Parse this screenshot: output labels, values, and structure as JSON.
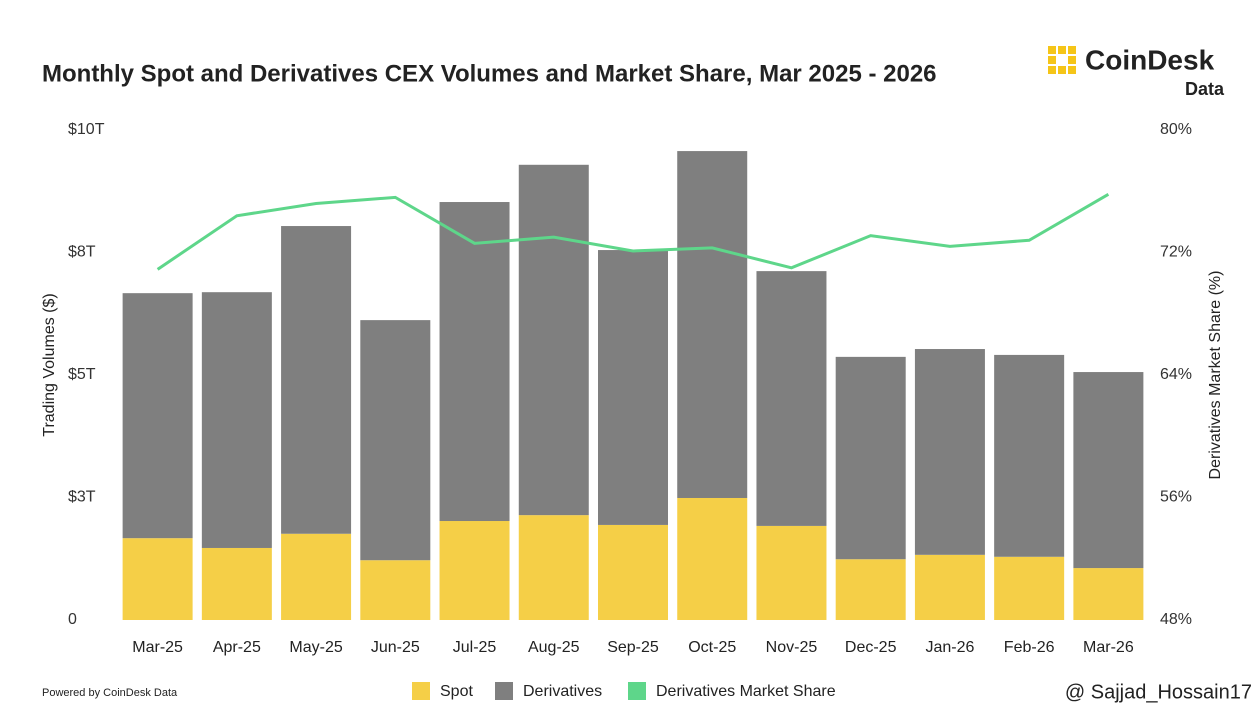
{
  "chart_data": {
    "type": "bar",
    "stacked": true,
    "title": "Monthly Spot and Derivatives CEX Volumes and Market Share, Mar 2025 - 2026",
    "y_label": "Trading Volumes ($)",
    "y2_label": "Derivatives Market Share (%)",
    "categories": [
      "Mar-25",
      "Apr-25",
      "May-25",
      "Jun-25",
      "Jul-25",
      "Aug-25",
      "Sep-25",
      "Oct-25",
      "Nov-25",
      "Dec-25",
      "Jan-26",
      "Feb-26",
      "Mar-26"
    ],
    "series": [
      {
        "name": "Spot",
        "type": "bar",
        "color": "#f5cf47",
        "values": [
          1.67,
          1.47,
          1.76,
          1.22,
          2.02,
          2.14,
          1.94,
          2.49,
          1.92,
          1.24,
          1.33,
          1.29,
          1.06
        ]
      },
      {
        "name": "Derivatives",
        "type": "bar",
        "color": "#7f7f7f",
        "values": [
          5.0,
          5.22,
          6.28,
          4.9,
          6.51,
          7.15,
          5.61,
          7.08,
          5.2,
          4.13,
          4.2,
          4.12,
          4.0
        ]
      },
      {
        "name": "Derivatives Market Share",
        "type": "line",
        "axis": "y2",
        "color": "#5ed68a",
        "values": [
          70.9,
          74.4,
          75.2,
          75.6,
          72.6,
          73.0,
          72.1,
          72.3,
          71.0,
          73.1,
          72.4,
          72.8,
          75.8
        ]
      }
    ],
    "ylim": [
      0,
      10
    ],
    "yticks": [
      {
        "value": 0,
        "label": "0"
      },
      {
        "value": 2.5,
        "label": "$3T"
      },
      {
        "value": 5,
        "label": "$5T"
      },
      {
        "value": 7.5,
        "label": "$8T"
      },
      {
        "value": 10,
        "label": "$10T"
      }
    ],
    "y2lim": [
      48,
      80
    ],
    "y2ticks": [
      {
        "value": 48,
        "label": "48%"
      },
      {
        "value": 56,
        "label": "56%"
      },
      {
        "value": 64,
        "label": "64%"
      },
      {
        "value": 72,
        "label": "72%"
      },
      {
        "value": 80,
        "label": "80%"
      }
    ],
    "legend": "bottom"
  },
  "brand": "CoinDesk",
  "brand_sub": "Data",
  "footer": "Powered by CoinDesk Data",
  "watermark": "@ Sajjad_Hossain17"
}
